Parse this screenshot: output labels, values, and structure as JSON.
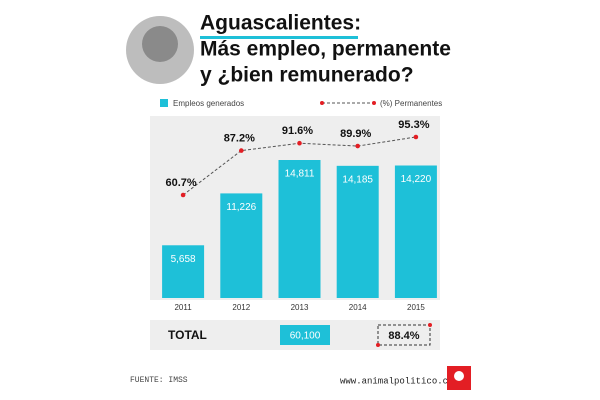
{
  "chart_data": {
    "type": "bar",
    "title": [
      "Aguascalientes:",
      "Más empleo, permanente",
      "y ¿bien remunerado?"
    ],
    "categories": [
      "2011",
      "2012",
      "2013",
      "2014",
      "2015"
    ],
    "series": [
      {
        "name": "Empleos generados",
        "type": "bar",
        "color": "#1ec0d8",
        "values": [
          5658,
          11226,
          14811,
          14185,
          14220
        ],
        "value_labels": [
          "5,658",
          "11,226",
          "14,811",
          "14,185",
          "14,220"
        ]
      },
      {
        "name": "(%) Permanentes",
        "type": "line",
        "color": "#e31e24",
        "values": [
          60.7,
          87.2,
          91.6,
          89.9,
          95.3
        ],
        "value_labels": [
          "60.7%",
          "87.2%",
          "91.6%",
          "89.9%",
          "95.3%"
        ]
      }
    ],
    "total": {
      "label": "TOTAL",
      "values": [
        60100,
        88.4
      ],
      "value_labels": [
        "60,100",
        "88.4%"
      ]
    },
    "source": "FUENTE: IMSS",
    "website": "www.animalpolitico.com"
  }
}
